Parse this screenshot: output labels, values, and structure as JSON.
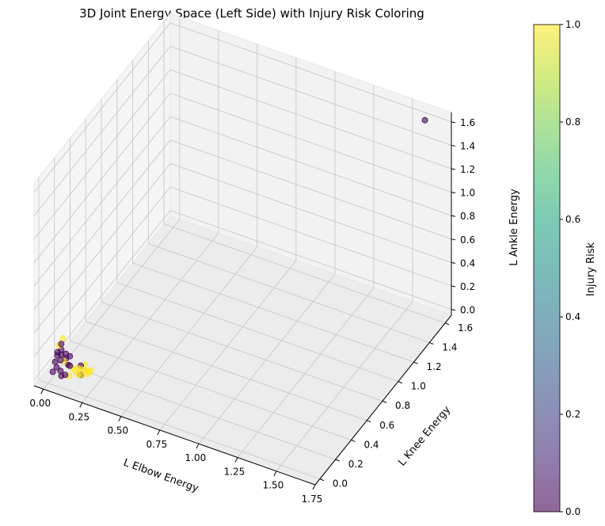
{
  "chart_data": {
    "type": "scatter",
    "title": "3D Joint Energy Space (Left Side) with Injury Risk Coloring",
    "xlabel": "L Elbow Energy",
    "ylabel": "L Knee Energy",
    "zlabel": "L Ankle Energy",
    "colorbar_label": "Injury Risk",
    "colormap": "viridis",
    "alpha": 0.6,
    "xlim": [
      -0.06,
      1.75
    ],
    "ylim": [
      -0.06,
      1.68
    ],
    "zlim": [
      -0.05,
      1.68
    ],
    "x_ticks": [
      "0.00",
      "0.25",
      "0.50",
      "0.75",
      "1.00",
      "1.25",
      "1.50",
      "1.75"
    ],
    "y_ticks": [
      "0.0",
      "0.2",
      "0.4",
      "0.6",
      "0.8",
      "1.0",
      "1.2",
      "1.4",
      "1.6"
    ],
    "z_ticks": [
      "0.0",
      "0.2",
      "0.4",
      "0.6",
      "0.8",
      "1.0",
      "1.2",
      "1.4",
      "1.6"
    ],
    "colorbar_ticks": [
      "0.0",
      "0.2",
      "0.4",
      "0.6",
      "0.8",
      "1.0"
    ],
    "grid": true,
    "points": [
      {
        "x": 1.62,
        "y": 1.6,
        "z": 1.62,
        "risk": 0
      },
      {
        "x": 0.02,
        "y": 0.05,
        "z": 0.1,
        "risk": 0
      },
      {
        "x": 0.03,
        "y": 0.06,
        "z": 0.15,
        "risk": 0
      },
      {
        "x": 0.04,
        "y": 0.04,
        "z": 0.2,
        "risk": 0
      },
      {
        "x": 0.05,
        "y": 0.07,
        "z": 0.25,
        "risk": 0
      },
      {
        "x": 0.03,
        "y": 0.08,
        "z": 0.22,
        "risk": 1
      },
      {
        "x": 0.06,
        "y": 0.05,
        "z": 0.18,
        "risk": 0
      },
      {
        "x": 0.07,
        "y": 0.06,
        "z": 0.12,
        "risk": 1
      },
      {
        "x": 0.04,
        "y": 0.03,
        "z": 0.08,
        "risk": 0
      },
      {
        "x": 0.08,
        "y": 0.07,
        "z": 0.14,
        "risk": 0
      },
      {
        "x": 0.09,
        "y": 0.05,
        "z": 0.2,
        "risk": 0
      },
      {
        "x": 0.05,
        "y": 0.09,
        "z": 0.28,
        "risk": 1
      },
      {
        "x": 0.1,
        "y": 0.08,
        "z": 0.16,
        "risk": 0
      },
      {
        "x": 0.11,
        "y": 0.06,
        "z": 0.1,
        "risk": 0
      },
      {
        "x": 0.06,
        "y": 0.04,
        "z": 0.05,
        "risk": 0
      },
      {
        "x": 0.12,
        "y": 0.07,
        "z": 0.08,
        "risk": 1
      },
      {
        "x": 0.02,
        "y": 0.02,
        "z": 0.04,
        "risk": 0
      },
      {
        "x": 0.08,
        "y": 0.1,
        "z": 0.06,
        "risk": 0
      },
      {
        "x": 0.13,
        "y": 0.09,
        "z": 0.04,
        "risk": 1
      },
      {
        "x": 0.14,
        "y": 0.1,
        "z": 0.06,
        "risk": 1
      },
      {
        "x": 0.15,
        "y": 0.08,
        "z": 0.03,
        "risk": 1
      },
      {
        "x": 0.16,
        "y": 0.11,
        "z": 0.05,
        "risk": 1
      },
      {
        "x": 0.17,
        "y": 0.09,
        "z": 0.02,
        "risk": 1
      },
      {
        "x": 0.18,
        "y": 0.12,
        "z": 0.04,
        "risk": 1
      },
      {
        "x": 0.19,
        "y": 0.1,
        "z": 0.06,
        "risk": 1
      },
      {
        "x": 0.2,
        "y": 0.11,
        "z": 0.03,
        "risk": 1
      },
      {
        "x": 0.21,
        "y": 0.13,
        "z": 0.05,
        "risk": 1
      },
      {
        "x": 0.17,
        "y": 0.13,
        "z": 0.08,
        "risk": 1
      },
      {
        "x": 0.15,
        "y": 0.12,
        "z": 0.07,
        "risk": 0
      },
      {
        "x": 0.19,
        "y": 0.14,
        "z": 0.02,
        "risk": 1
      },
      {
        "x": 0.16,
        "y": 0.1,
        "z": 0.01,
        "risk": 0
      },
      {
        "x": 0.07,
        "y": 0.03,
        "z": 0.02,
        "risk": 0
      },
      {
        "x": 0.09,
        "y": 0.04,
        "z": 0.03,
        "risk": 0
      },
      {
        "x": 0.11,
        "y": 0.05,
        "z": 0.02,
        "risk": 1
      },
      {
        "x": 0.05,
        "y": 0.06,
        "z": 0.12,
        "risk": 0
      },
      {
        "x": 0.04,
        "y": 0.09,
        "z": 0.18,
        "risk": 0
      }
    ]
  }
}
